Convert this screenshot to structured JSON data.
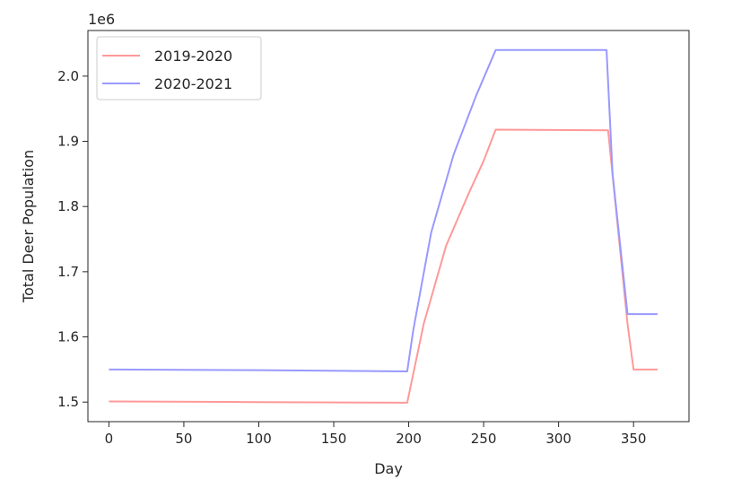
{
  "chart_data": {
    "type": "line",
    "title": "",
    "xlabel": "Day",
    "ylabel": "Total Deer Population",
    "y_offset_label": "1e6",
    "xlim": [
      -14,
      387
    ],
    "ylim": [
      1.47,
      2.07
    ],
    "x_ticks": [
      0,
      50,
      100,
      150,
      200,
      250,
      300,
      350
    ],
    "x_tick_labels": [
      "0",
      "50",
      "100",
      "150",
      "200",
      "250",
      "300",
      "350"
    ],
    "y_ticks": [
      1.5,
      1.6,
      1.7,
      1.8,
      1.9,
      2.0
    ],
    "y_tick_labels": [
      "1.5",
      "1.6",
      "1.7",
      "1.8",
      "1.9",
      "2.0"
    ],
    "grid": false,
    "legend_position": "top-left",
    "series": [
      {
        "name": "2019-2020",
        "color": "#ff9999",
        "points": [
          [
            0,
            1.501
          ],
          [
            100,
            1.5
          ],
          [
            199,
            1.499
          ],
          [
            210,
            1.62
          ],
          [
            225,
            1.74
          ],
          [
            240,
            1.82
          ],
          [
            250,
            1.87
          ],
          [
            258,
            1.918
          ],
          [
            333,
            1.917
          ],
          [
            346,
            1.62
          ],
          [
            350,
            1.55
          ],
          [
            366,
            1.55
          ]
        ]
      },
      {
        "name": "2020-2021",
        "color": "#9999ff",
        "points": [
          [
            0,
            1.55
          ],
          [
            100,
            1.549
          ],
          [
            199,
            1.547
          ],
          [
            203,
            1.61
          ],
          [
            215,
            1.76
          ],
          [
            230,
            1.88
          ],
          [
            245,
            1.97
          ],
          [
            258,
            2.04
          ],
          [
            332,
            2.04
          ],
          [
            336,
            1.85
          ],
          [
            346,
            1.635
          ],
          [
            366,
            1.635
          ]
        ]
      }
    ]
  }
}
